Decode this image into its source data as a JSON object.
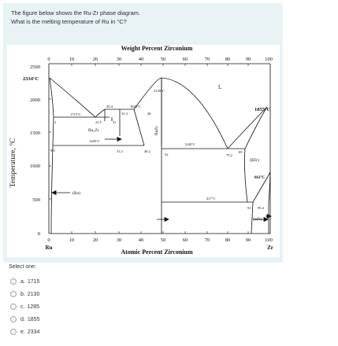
{
  "question": {
    "text": "The figure below shows the Ru-Zr phase diagram. What is the melting temperature of Ru in °C?"
  },
  "figure": {
    "top_axis_label": "Weight Percent Zirconium",
    "bottom_axis_label": "Atomic Percent Zirconium",
    "y_axis_label": "Temperature, °C",
    "left_component": "Ru",
    "right_component": "Zr",
    "top_ticks": [
      "0",
      "10",
      "20",
      "30",
      "40",
      "50",
      "60",
      "70",
      "80",
      "90",
      "100"
    ],
    "bottom_ticks": [
      "0",
      "10",
      "20",
      "30",
      "40",
      "50",
      "60",
      "70",
      "80",
      "90",
      "100"
    ],
    "y_ticks": [
      "0",
      "500",
      "1000",
      "1500",
      "2000",
      "2500"
    ],
    "annotations": {
      "ru_melt": "2334°C",
      "zr_melt": "1855°C",
      "zr_trans": "863°C",
      "rumax": "2130°C",
      "l1715": "1715°C",
      "l1825": "1825°C",
      "l1285": "1285°C",
      "l1240": "1240°C",
      "l417": "417°C",
      "liquid": "L",
      "ru2zr": "Ru₂Zr",
      "ruzr": "RuZr",
      "ru_phase": "(Ru)",
      "bzr": "(βZr)",
      "azr": "(αZr)",
      "n2": "2",
      "n99": "9.9",
      "n304": "30.4",
      "n333a": "33.3",
      "n48": "48",
      "n235": "23.5",
      "n31": "31",
      "n333b": "33.3",
      "n482": "48.2",
      "n52": "52",
      "n792": "79.2",
      "n89": "89",
      "n91": "91",
      "n994": "99.4"
    }
  },
  "answers": {
    "select_label": "Select one:",
    "options": [
      {
        "letter": "a.",
        "text": "1715"
      },
      {
        "letter": "b.",
        "text": "2130"
      },
      {
        "letter": "c.",
        "text": "1285"
      },
      {
        "letter": "d.",
        "text": "1855"
      },
      {
        "letter": "e.",
        "text": "2334"
      }
    ]
  }
}
